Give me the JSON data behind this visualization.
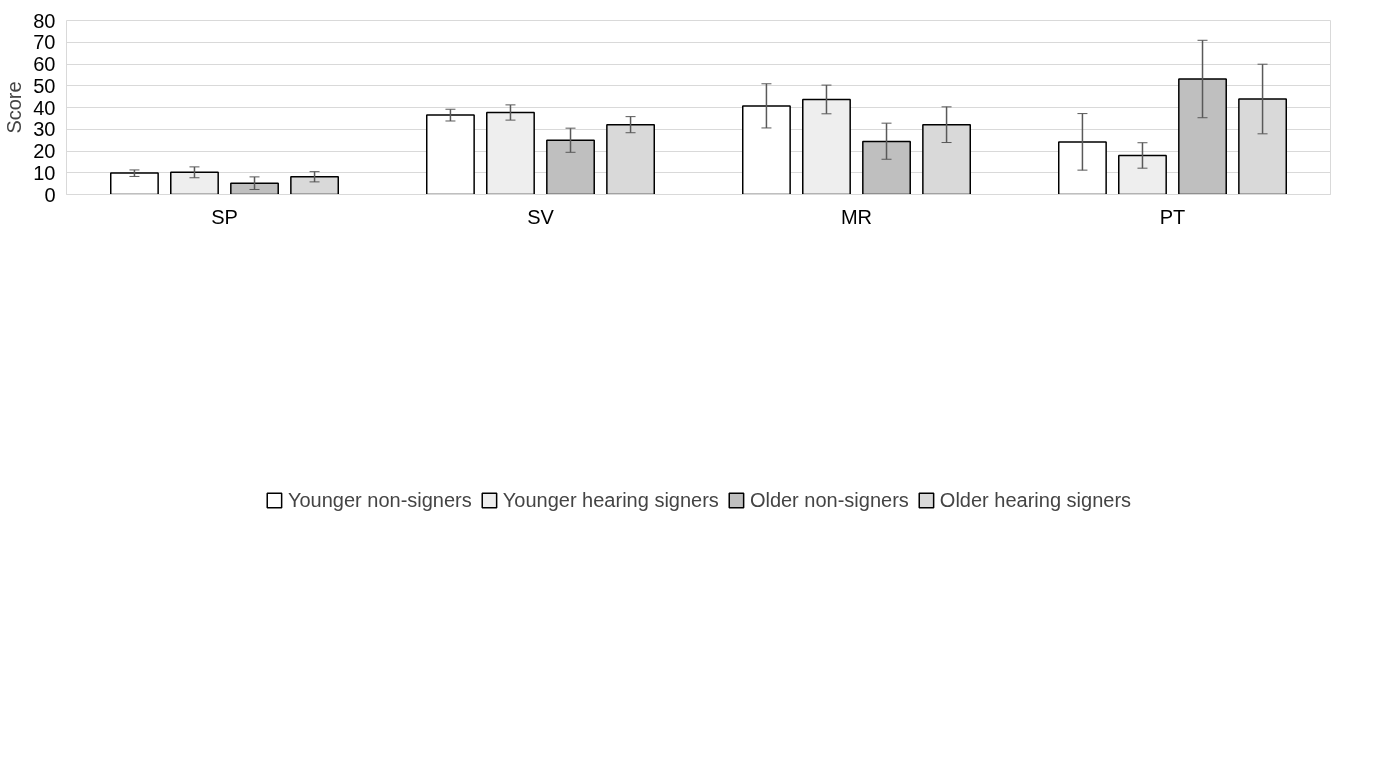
{
  "chart_data": {
    "type": "bar",
    "ylabel": "Score",
    "categories": [
      "SP",
      "SV",
      "MR",
      "PT"
    ],
    "series": [
      {
        "name": "Younger non-signers",
        "color": "#ffffff",
        "values": [
          9.9,
          36.5,
          40.7,
          24.1
        ],
        "errors": [
          [
            8.3,
            11.3
          ],
          [
            33.8,
            39.2
          ],
          [
            30.6,
            50.9
          ],
          [
            11.2,
            37.2
          ]
        ]
      },
      {
        "name": "Younger hearing signers",
        "color": "#eeeeee",
        "values": [
          10.2,
          37.7,
          43.7,
          17.9
        ],
        "errors": [
          [
            7.7,
            12.7
          ],
          [
            34.2,
            41.2
          ],
          [
            37.1,
            50.3
          ],
          [
            12.1,
            23.8
          ]
        ]
      },
      {
        "name": "Older non-signers",
        "color": "#bfbfbf",
        "values": [
          5.2,
          24.9,
          24.4,
          53.1
        ],
        "errors": [
          [
            2.3,
            8.1
          ],
          [
            19.4,
            30.5
          ],
          [
            16.2,
            32.8
          ],
          [
            35.3,
            70.9
          ]
        ]
      },
      {
        "name": "Older hearing signers",
        "color": "#d9d9d9",
        "values": [
          8.2,
          32.1,
          32.1,
          43.9
        ],
        "errors": [
          [
            5.8,
            10.5
          ],
          [
            28.4,
            35.8
          ],
          [
            23.9,
            40.3
          ],
          [
            27.9,
            59.9
          ]
        ]
      }
    ],
    "ylim": [
      0,
      80
    ],
    "yticks": [
      0,
      10,
      20,
      30,
      40,
      50,
      60,
      70,
      80
    ],
    "grid": "y",
    "legend": "bottom"
  }
}
